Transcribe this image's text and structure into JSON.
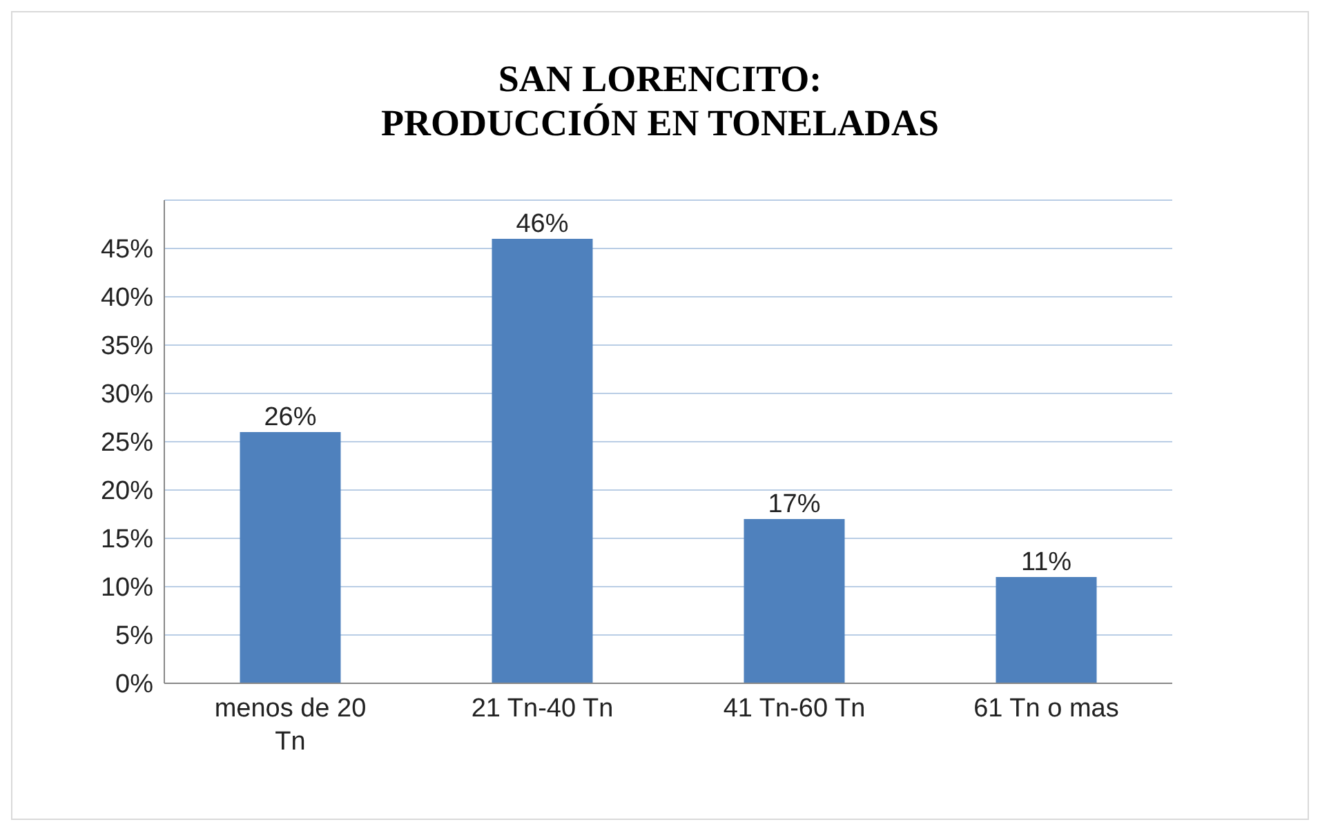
{
  "chart_data": {
    "type": "bar",
    "title": "SAN LORENCITO: PRODUCCIÓN EN TONELADAS",
    "categories": [
      "menos de 20 Tn",
      "21 Tn-40 Tn",
      "41 Tn-60 Tn",
      "61 Tn o mas"
    ],
    "values": [
      26,
      46,
      17,
      11
    ],
    "value_labels": [
      "26%",
      "46%",
      "17%",
      "11%"
    ],
    "color": "#4f81bd",
    "ylim": [
      0,
      50
    ],
    "yticks": [
      {
        "value": 0,
        "label": "0%"
      },
      {
        "value": 5,
        "label": "5%"
      },
      {
        "value": 10,
        "label": "10%"
      },
      {
        "value": 15,
        "label": "15%"
      },
      {
        "value": 20,
        "label": "20%"
      },
      {
        "value": 25,
        "label": "25%"
      },
      {
        "value": 30,
        "label": "30%"
      },
      {
        "value": 35,
        "label": "35%"
      },
      {
        "value": 40,
        "label": "40%"
      },
      {
        "value": 45,
        "label": "45%"
      }
    ],
    "grid": "y"
  }
}
